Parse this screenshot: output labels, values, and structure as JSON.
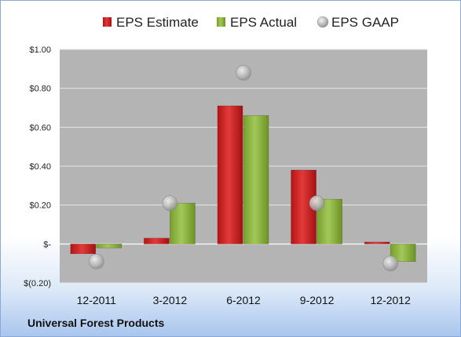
{
  "company": "Universal Forest Products",
  "chart_data": {
    "type": "bar",
    "title": "",
    "xlabel": "",
    "ylabel": "",
    "categories": [
      "12-2011",
      "3-2012",
      "6-2012",
      "9-2012",
      "12-2012"
    ],
    "series": [
      {
        "name": "EPS Estimate",
        "kind": "bar",
        "color": "#cc1c1c",
        "values": [
          -0.05,
          0.03,
          0.71,
          0.38,
          0.01
        ]
      },
      {
        "name": "EPS Actual",
        "kind": "bar",
        "color": "#8cb338",
        "values": [
          -0.02,
          0.21,
          0.66,
          0.23,
          -0.09
        ]
      },
      {
        "name": "EPS GAAP",
        "kind": "marker",
        "color": "#9a9a9a",
        "values": [
          -0.09,
          0.21,
          0.88,
          0.21,
          -0.1
        ]
      }
    ],
    "ylim": [
      -0.2,
      1.0
    ],
    "yticks": [
      1.0,
      0.8,
      0.6,
      0.4,
      0.2,
      0.0,
      -0.2
    ],
    "ytick_labels": [
      "$1.00",
      "$0.80",
      "$0.60",
      "$0.40",
      "$0.20",
      "$-",
      "$(0.20)"
    ],
    "grid": true,
    "legend_position": "top"
  }
}
